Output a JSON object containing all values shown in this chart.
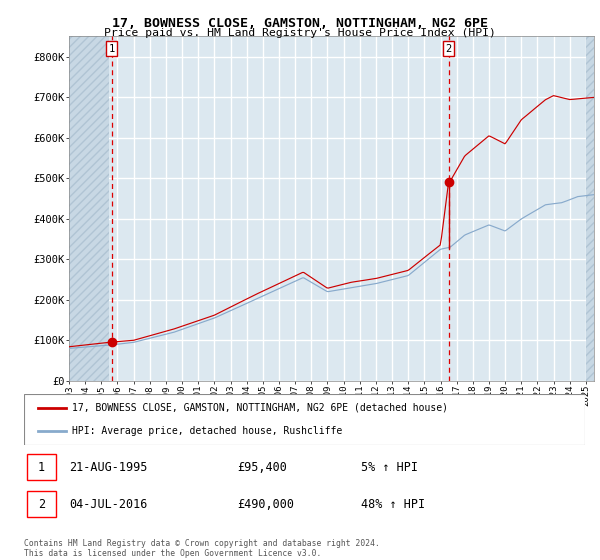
{
  "title1": "17, BOWNESS CLOSE, GAMSTON, NOTTINGHAM, NG2 6PE",
  "title2": "Price paid vs. HM Land Registry's House Price Index (HPI)",
  "bg_color": "#dce8f0",
  "grid_color": "#ffffff",
  "red_line_color": "#cc0000",
  "blue_line_color": "#88aacc",
  "sale1_date": 1995.645,
  "sale1_price": 95400,
  "sale2_date": 2016.503,
  "sale2_price": 490000,
  "sale1_label": "1",
  "sale2_label": "2",
  "sale1_text": "21-AUG-1995",
  "sale1_amount": "£95,400",
  "sale1_hpi": "5% ↑ HPI",
  "sale2_text": "04-JUL-2016",
  "sale2_amount": "£490,000",
  "sale2_hpi": "48% ↑ HPI",
  "legend_label1": "17, BOWNESS CLOSE, GAMSTON, NOTTINGHAM, NG2 6PE (detached house)",
  "legend_label2": "HPI: Average price, detached house, Rushcliffe",
  "footer": "Contains HM Land Registry data © Crown copyright and database right 2024.\nThis data is licensed under the Open Government Licence v3.0.",
  "ylim": [
    0,
    850000
  ],
  "xstart": 1993.0,
  "xend": 2025.5,
  "hatch_xend": 1995.5,
  "hatch_xstart2": 2025.0,
  "hpi_anchors_x": [
    1993.0,
    1995.5,
    1997.0,
    1999.5,
    2002.0,
    2004.5,
    2007.5,
    2009.0,
    2010.5,
    2012.0,
    2014.0,
    2016.0,
    2016.6,
    2017.5,
    2019.0,
    2020.0,
    2021.0,
    2022.5,
    2023.5,
    2024.5,
    2025.5
  ],
  "hpi_anchors_y": [
    80000,
    88000,
    95000,
    120000,
    155000,
    200000,
    255000,
    220000,
    230000,
    240000,
    260000,
    325000,
    330000,
    360000,
    385000,
    370000,
    400000,
    435000,
    440000,
    455000,
    460000
  ],
  "red_anchors_x": [
    1993.0,
    1995.5,
    1997.0,
    1999.5,
    2002.0,
    2004.5,
    2007.5,
    2009.0,
    2010.5,
    2012.0,
    2014.0,
    2016.0,
    2016.5,
    2017.5,
    2019.0,
    2020.0,
    2021.0,
    2022.5,
    2023.0,
    2024.0,
    2025.5
  ],
  "red_anchors_y": [
    84000,
    95000,
    100000,
    128000,
    162000,
    212000,
    268000,
    228000,
    243000,
    252000,
    272000,
    335000,
    490000,
    560000,
    610000,
    590000,
    650000,
    700000,
    710000,
    700000,
    705000
  ]
}
